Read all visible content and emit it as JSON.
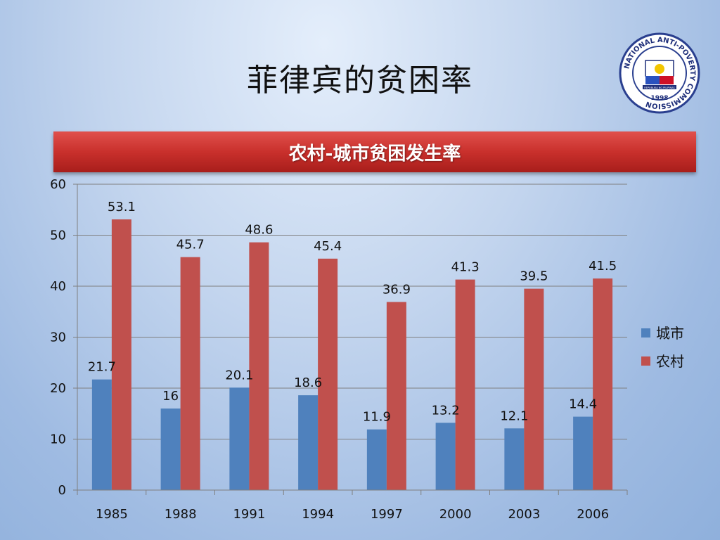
{
  "slide": {
    "title": "菲律宾的贫困率"
  },
  "logo": {
    "text_top": "NATIONAL ANTI-POVERTY COMMISSION",
    "year": "1998",
    "ribbon": "REPUBLIKA NG PILIPINAS"
  },
  "colors": {
    "urban": "#4f81bd",
    "rural": "#c0504d",
    "banner": "#c9302c"
  },
  "chart_data": {
    "type": "bar",
    "title": "农村-城市贫困发生率",
    "categories": [
      "1985",
      "1988",
      "1991",
      "1994",
      "1997",
      "2000",
      "2003",
      "2006"
    ],
    "series": [
      {
        "name": "城市",
        "values": [
          21.7,
          16,
          20.1,
          18.6,
          11.9,
          13.2,
          12.1,
          14.4
        ]
      },
      {
        "name": "农村",
        "values": [
          53.1,
          45.7,
          48.6,
          45.4,
          36.9,
          41.3,
          39.5,
          41.5
        ]
      }
    ],
    "ylim": [
      0,
      60
    ],
    "yticks": [
      0,
      10,
      20,
      30,
      40,
      50,
      60
    ],
    "grid": true,
    "legend": "right",
    "data_labels": true
  }
}
